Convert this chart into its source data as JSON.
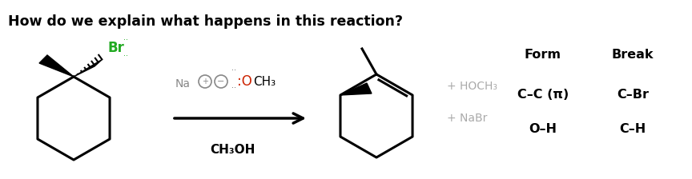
{
  "title": "How do we explain what happens in this reaction?",
  "title_fontsize": 12.5,
  "title_fontweight": "bold",
  "background_color": "#ffffff",
  "br_color": "#22aa22",
  "o_color": "#cc2200",
  "gray_color": "#aaaaaa",
  "dark_gray": "#888888",
  "table_header_form": "Form",
  "table_header_break": "Break",
  "table_row1_form": "C–C (π)",
  "table_row1_break": "C–Br",
  "table_row2_form": "O–H",
  "table_row2_break": "C–H",
  "table_fontsize": 11.5,
  "table_fontweight": "bold",
  "byproduct1": "+ HOCH₃",
  "byproduct2": "+ NaBr",
  "byproduct_color": "#aaaaaa",
  "byproduct_fontsize": 10,
  "reagent_na": "Na",
  "reagent_o_text": "OCH₃",
  "reagent_below": "CH₃OH",
  "plus_sym": "⊕",
  "minus_sym": "⊖"
}
